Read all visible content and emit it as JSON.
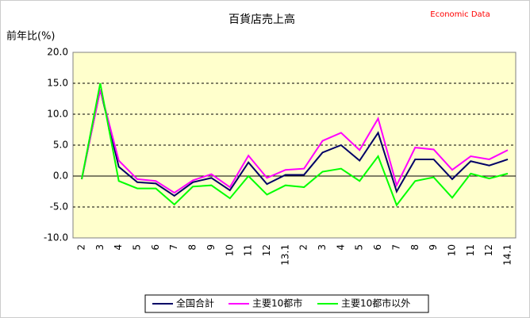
{
  "chart_data": {
    "type": "line",
    "title": "百貨店売上高",
    "source": "Economic Data",
    "y_label": "前年比(%)",
    "categories": [
      "2",
      "3",
      "4",
      "5",
      "6",
      "7",
      "8",
      "9",
      "10",
      "11",
      "12",
      "13.1",
      "2",
      "3",
      "4",
      "5",
      "6",
      "7",
      "8",
      "9",
      "10",
      "11",
      "12",
      "14.1"
    ],
    "series": [
      {
        "name": "全国合計",
        "color": "#000066",
        "values": [
          -0.5,
          14.0,
          1.5,
          -1.0,
          -1.2,
          -3.2,
          -1.0,
          -0.3,
          -2.3,
          2.2,
          -1.3,
          0.2,
          0.2,
          3.8,
          5.0,
          2.5,
          7.0,
          -2.5,
          2.7,
          2.7,
          -0.5,
          2.4,
          1.7,
          2.7
        ]
      },
      {
        "name": "主要10都市",
        "color": "#ff00ff",
        "values": [
          -0.5,
          14.0,
          2.5,
          -0.5,
          -0.8,
          -2.7,
          -0.7,
          0.3,
          -1.8,
          3.3,
          -0.3,
          1.0,
          1.2,
          5.7,
          7.0,
          4.2,
          9.3,
          -1.5,
          4.6,
          4.3,
          1.0,
          3.2,
          2.7,
          4.2
        ]
      },
      {
        "name": "主要10都市以外",
        "color": "#00ff00",
        "values": [
          -0.5,
          15.0,
          -0.8,
          -2.0,
          -2.0,
          -4.6,
          -1.7,
          -1.5,
          -3.6,
          0.0,
          -3.0,
          -1.5,
          -1.8,
          0.7,
          1.2,
          -0.8,
          3.2,
          -4.7,
          -0.8,
          -0.2,
          -3.5,
          0.4,
          -0.4,
          0.4
        ]
      }
    ],
    "ylim": [
      -10,
      20
    ],
    "yticks": [
      {
        "value": -10,
        "label": "-10.0"
      },
      {
        "value": -5,
        "label": "-5.0"
      },
      {
        "value": 0,
        "label": "0.0"
      },
      {
        "value": 5,
        "label": "5.0"
      },
      {
        "value": 10,
        "label": "10.0"
      },
      {
        "value": 15,
        "label": "15.0"
      },
      {
        "value": 20,
        "label": "20.0"
      }
    ],
    "grid": true,
    "legend": "bottom"
  }
}
